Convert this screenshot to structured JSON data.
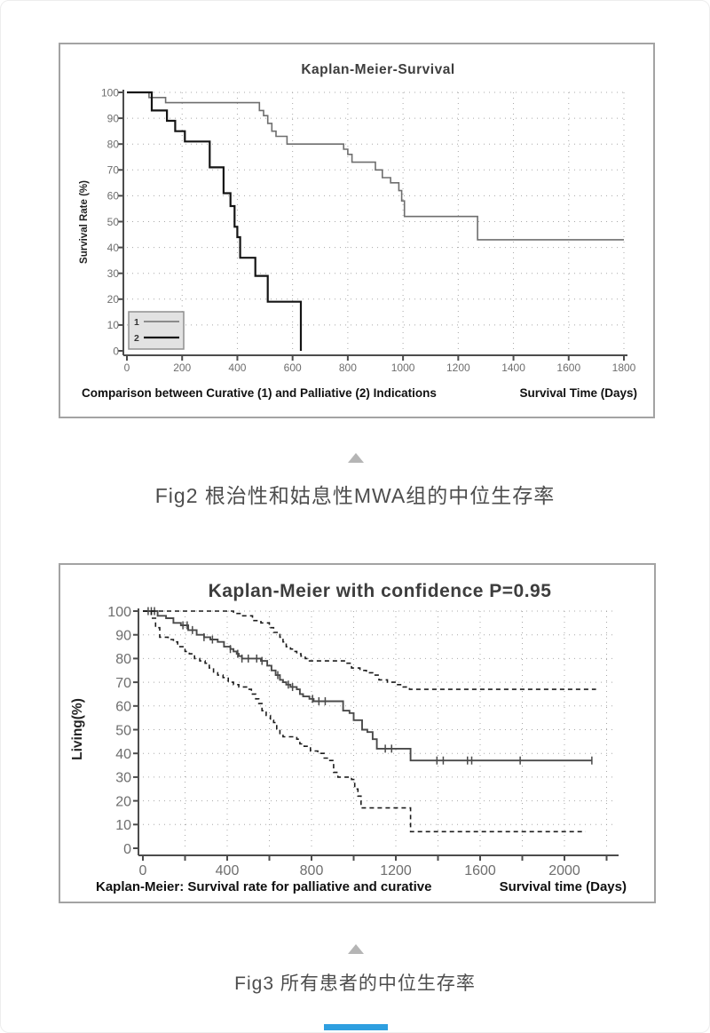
{
  "captions": {
    "fig2": "Fig2 根治性和姑息性MWA组的中位生存率",
    "fig3": "Fig3 所有患者的中位生存率"
  },
  "colors": {
    "panel_border": "#a3a3a3",
    "axis": "#4c4c4c",
    "grid": "#a8a8a8",
    "title": "#3d3d3d",
    "tick_label": "#6e6e6e",
    "footnote": "#101010",
    "caption": "#4d4d4d",
    "triangle": "#b5b5b5",
    "bottom_bar": "#2e9fe0"
  },
  "chart_data": [
    {
      "type": "line",
      "subtype": "kaplan-meier-step",
      "title": "Kaplan-Meier-Survival",
      "ylabel": "Survival Rate (%)",
      "xlabel": "Survival Time (Days)",
      "footnote": "Comparison between Curative (1) and Palliative (2) Indications",
      "xlim": [
        0,
        1800
      ],
      "ylim": [
        0,
        100
      ],
      "x_ticks": [
        0,
        200,
        400,
        600,
        800,
        1000,
        1200,
        1400,
        1600,
        1800
      ],
      "x_labeled_ticks": [
        0,
        200,
        400,
        600,
        800,
        1000,
        1200,
        1400,
        1600,
        1800
      ],
      "y_ticks": [
        0,
        10,
        20,
        30,
        40,
        50,
        60,
        70,
        80,
        90,
        100
      ],
      "grid": "dotted",
      "legend": {
        "position": "lower-left",
        "entries": [
          "1",
          "2"
        ]
      },
      "series": [
        {
          "name": "1",
          "color": "#6e6e6e",
          "width": 1.6,
          "dash": null,
          "steps": [
            [
              0,
              100
            ],
            [
              80,
              98
            ],
            [
              140,
              96
            ],
            [
              480,
              93
            ],
            [
              495,
              91
            ],
            [
              510,
              88
            ],
            [
              525,
              85
            ],
            [
              540,
              83
            ],
            [
              580,
              80
            ],
            [
              785,
              78
            ],
            [
              800,
              76
            ],
            [
              815,
              73
            ],
            [
              900,
              70
            ],
            [
              925,
              67
            ],
            [
              955,
              65
            ],
            [
              985,
              62
            ],
            [
              995,
              58
            ],
            [
              1005,
              52
            ],
            [
              1270,
              43
            ],
            [
              1800,
              43
            ]
          ]
        },
        {
          "name": "2",
          "color": "#151515",
          "width": 2.2,
          "dash": null,
          "steps": [
            [
              0,
              100
            ],
            [
              90,
              93
            ],
            [
              145,
              89
            ],
            [
              175,
              85
            ],
            [
              210,
              81
            ],
            [
              300,
              71
            ],
            [
              350,
              61
            ],
            [
              375,
              56
            ],
            [
              390,
              48
            ],
            [
              400,
              44
            ],
            [
              410,
              36
            ],
            [
              465,
              29
            ],
            [
              510,
              19
            ],
            [
              630,
              0
            ]
          ]
        }
      ]
    },
    {
      "type": "line",
      "subtype": "kaplan-meier-confidence-band",
      "title": "Kaplan-Meier with confidence P=0.95",
      "ylabel": "Living(%)",
      "xlabel": "Survival time (Days)",
      "footnote": "Kaplan-Meier: Survival rate for palliative and curative",
      "xlim": [
        0,
        2240
      ],
      "ylim": [
        0,
        100
      ],
      "x_ticks": [
        0,
        200,
        400,
        600,
        800,
        1000,
        1200,
        1400,
        1600,
        1800,
        2000,
        2200
      ],
      "x_labeled_ticks": [
        0,
        400,
        800,
        1200,
        1600,
        2000
      ],
      "y_ticks": [
        0,
        10,
        20,
        30,
        40,
        50,
        60,
        70,
        80,
        90,
        100
      ],
      "grid": "dotted",
      "legend": null,
      "series": [
        {
          "name": "estimate",
          "role": "survival-estimate",
          "color": "#4a4a4a",
          "width": 1.9,
          "dash": null,
          "steps": [
            [
              0,
              100
            ],
            [
              70,
              98
            ],
            [
              110,
              97
            ],
            [
              145,
              95
            ],
            [
              180,
              94
            ],
            [
              215,
              92
            ],
            [
              255,
              90
            ],
            [
              290,
              89
            ],
            [
              320,
              88
            ],
            [
              355,
              87
            ],
            [
              385,
              85
            ],
            [
              415,
              84
            ],
            [
              430,
              83
            ],
            [
              445,
              82
            ],
            [
              455,
              81
            ],
            [
              470,
              80
            ],
            [
              560,
              79
            ],
            [
              590,
              77
            ],
            [
              610,
              75
            ],
            [
              630,
              73
            ],
            [
              650,
              71
            ],
            [
              665,
              70
            ],
            [
              680,
              69
            ],
            [
              700,
              68
            ],
            [
              730,
              67
            ],
            [
              745,
              65
            ],
            [
              760,
              64
            ],
            [
              790,
              63
            ],
            [
              810,
              62
            ],
            [
              950,
              58
            ],
            [
              980,
              57
            ],
            [
              1000,
              54
            ],
            [
              1040,
              50
            ],
            [
              1065,
              49
            ],
            [
              1090,
              46
            ],
            [
              1110,
              42
            ],
            [
              1270,
              37
            ],
            [
              2130,
              37
            ]
          ],
          "censor_marks_days": [
            25,
            40,
            55,
            190,
            210,
            235,
            290,
            330,
            415,
            450,
            470,
            500,
            540,
            565,
            640,
            690,
            710,
            805,
            835,
            865,
            1150,
            1180,
            1395,
            1425,
            1540,
            1560,
            1790,
            2130
          ]
        },
        {
          "name": "upper_ci",
          "role": "upper-confidence-bound",
          "color": "#1c1c1c",
          "width": 1.6,
          "dash": "5 4",
          "steps": [
            [
              0,
              100
            ],
            [
              430,
              99
            ],
            [
              470,
              98
            ],
            [
              520,
              96
            ],
            [
              560,
              95
            ],
            [
              600,
              93
            ],
            [
              620,
              91
            ],
            [
              650,
              89
            ],
            [
              665,
              87
            ],
            [
              680,
              85
            ],
            [
              700,
              84
            ],
            [
              715,
              83
            ],
            [
              730,
              82
            ],
            [
              750,
              81
            ],
            [
              770,
              80
            ],
            [
              790,
              79
            ],
            [
              960,
              78
            ],
            [
              990,
              76
            ],
            [
              1030,
              75
            ],
            [
              1060,
              74
            ],
            [
              1090,
              73
            ],
            [
              1120,
              71
            ],
            [
              1160,
              70
            ],
            [
              1200,
              69
            ],
            [
              1235,
              68
            ],
            [
              1265,
              67
            ],
            [
              2150,
              67
            ]
          ]
        },
        {
          "name": "lower_ci",
          "role": "lower-confidence-bound",
          "color": "#1c1c1c",
          "width": 1.6,
          "dash": "5 4",
          "steps": [
            [
              0,
              100
            ],
            [
              40,
              97
            ],
            [
              60,
              93
            ],
            [
              80,
              89
            ],
            [
              120,
              88
            ],
            [
              145,
              87
            ],
            [
              165,
              85
            ],
            [
              200,
              83
            ],
            [
              220,
              82
            ],
            [
              245,
              80
            ],
            [
              270,
              79
            ],
            [
              295,
              78
            ],
            [
              315,
              76
            ],
            [
              335,
              74
            ],
            [
              355,
              73
            ],
            [
              380,
              72
            ],
            [
              405,
              70
            ],
            [
              430,
              69
            ],
            [
              455,
              68
            ],
            [
              500,
              67
            ],
            [
              515,
              65
            ],
            [
              535,
              63
            ],
            [
              550,
              61
            ],
            [
              565,
              58
            ],
            [
              585,
              56
            ],
            [
              605,
              54
            ],
            [
              620,
              53
            ],
            [
              635,
              50
            ],
            [
              650,
              48
            ],
            [
              665,
              47
            ],
            [
              730,
              46
            ],
            [
              745,
              44
            ],
            [
              765,
              43
            ],
            [
              795,
              41
            ],
            [
              830,
              40
            ],
            [
              860,
              38
            ],
            [
              875,
              37
            ],
            [
              905,
              32
            ],
            [
              925,
              30
            ],
            [
              990,
              29
            ],
            [
              1005,
              25
            ],
            [
              1020,
              22
            ],
            [
              1035,
              17
            ],
            [
              1270,
              7
            ],
            [
              2100,
              7
            ]
          ]
        }
      ]
    }
  ]
}
